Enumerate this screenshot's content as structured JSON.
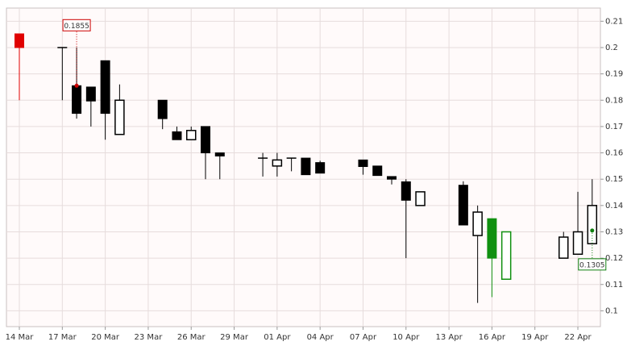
{
  "chart_data": {
    "type": "candlestick",
    "ylim": [
      0.094,
      0.215
    ],
    "yticks": [
      0.1,
      0.11,
      0.12,
      0.13,
      0.14,
      0.15,
      0.16,
      0.17,
      0.18,
      0.19,
      0.2,
      0.21
    ],
    "xticks": [
      "14 Mar",
      "17 Mar",
      "20 Mar",
      "23 Mar",
      "26 Mar",
      "29 Mar",
      "01 Apr",
      "04 Apr",
      "07 Apr",
      "10 Apr",
      "13 Apr",
      "16 Apr",
      "19 Apr",
      "22 Apr"
    ],
    "grid": true,
    "candles": [
      {
        "date": "14 Mar",
        "open": 0.2052,
        "high": 0.2052,
        "low": 0.18,
        "close": 0.2,
        "color": "#e00000"
      },
      {
        "date": "17 Mar",
        "open": 0.2,
        "high": 0.2,
        "low": 0.18,
        "close": 0.2,
        "color": "#000000"
      },
      {
        "date": "18 Mar",
        "open": 0.1855,
        "high": 0.2,
        "low": 0.173,
        "close": 0.175,
        "color": "#000000"
      },
      {
        "date": "19 Mar",
        "open": 0.185,
        "high": 0.185,
        "low": 0.17,
        "close": 0.1797,
        "color": "#000000"
      },
      {
        "date": "20 Mar",
        "open": 0.195,
        "high": 0.195,
        "low": 0.165,
        "close": 0.175,
        "color": "#000000"
      },
      {
        "date": "21 Mar",
        "open": 0.167,
        "high": 0.186,
        "low": 0.167,
        "close": 0.18,
        "color": "#000000"
      },
      {
        "date": "24 Mar",
        "open": 0.18,
        "high": 0.18,
        "low": 0.169,
        "close": 0.173,
        "color": "#000000"
      },
      {
        "date": "25 Mar",
        "open": 0.168,
        "high": 0.17,
        "low": 0.165,
        "close": 0.165,
        "color": "#000000"
      },
      {
        "date": "26 Mar",
        "open": 0.165,
        "high": 0.17,
        "low": 0.165,
        "close": 0.1685,
        "color": "#000000"
      },
      {
        "date": "27 Mar",
        "open": 0.17,
        "high": 0.17,
        "low": 0.15,
        "close": 0.16,
        "color": "#000000"
      },
      {
        "date": "28 Mar",
        "open": 0.16,
        "high": 0.16,
        "low": 0.15,
        "close": 0.1588,
        "color": "#000000"
      },
      {
        "date": "31 Mar",
        "open": 0.158,
        "high": 0.16,
        "low": 0.151,
        "close": 0.158,
        "color": "#000000"
      },
      {
        "date": "01 Apr",
        "open": 0.155,
        "high": 0.16,
        "low": 0.151,
        "close": 0.1573,
        "color": "#000000"
      },
      {
        "date": "02 Apr",
        "open": 0.158,
        "high": 0.158,
        "low": 0.153,
        "close": 0.158,
        "color": "#000000"
      },
      {
        "date": "03 Apr",
        "open": 0.158,
        "high": 0.158,
        "low": 0.1517,
        "close": 0.1517,
        "color": "#000000"
      },
      {
        "date": "04 Apr",
        "open": 0.1563,
        "high": 0.157,
        "low": 0.1523,
        "close": 0.1523,
        "color": "#000000"
      },
      {
        "date": "07 Apr",
        "open": 0.1573,
        "high": 0.1573,
        "low": 0.1517,
        "close": 0.1548,
        "color": "#000000"
      },
      {
        "date": "08 Apr",
        "open": 0.155,
        "high": 0.155,
        "low": 0.1514,
        "close": 0.1514,
        "color": "#000000"
      },
      {
        "date": "09 Apr",
        "open": 0.151,
        "high": 0.151,
        "low": 0.148,
        "close": 0.15,
        "color": "#000000"
      },
      {
        "date": "10 Apr",
        "open": 0.149,
        "high": 0.15,
        "low": 0.12,
        "close": 0.142,
        "color": "#000000"
      },
      {
        "date": "11 Apr",
        "open": 0.14,
        "high": 0.1452,
        "low": 0.14,
        "close": 0.1452,
        "color": "#000000"
      },
      {
        "date": "14 Apr",
        "open": 0.1477,
        "high": 0.1492,
        "low": 0.1326,
        "close": 0.1326,
        "color": "#000000"
      },
      {
        "date": "15 Apr",
        "open": 0.1286,
        "high": 0.14,
        "low": 0.103,
        "close": 0.1375,
        "color": "#000000"
      },
      {
        "date": "16 Apr",
        "open": 0.135,
        "high": 0.135,
        "low": 0.1052,
        "close": 0.12,
        "color": "#109010"
      },
      {
        "date": "17 Apr",
        "open": 0.112,
        "high": 0.13,
        "low": 0.112,
        "close": 0.13,
        "color": "#109010"
      },
      {
        "date": "21 Apr",
        "open": 0.12,
        "high": 0.13,
        "low": 0.12,
        "close": 0.128,
        "color": "#000000"
      },
      {
        "date": "22 Apr",
        "open": 0.1215,
        "high": 0.1452,
        "low": 0.1215,
        "close": 0.13,
        "color": "#000000"
      },
      {
        "date": "23 Apr",
        "open": 0.1255,
        "high": 0.15,
        "low": 0.1255,
        "close": 0.14,
        "color": "#000000"
      }
    ],
    "annotations": [
      {
        "date": "18 Mar",
        "value": 0.1855,
        "color": "#cc0000"
      },
      {
        "date": "23 Apr",
        "value": 0.1305,
        "color": "#108010"
      }
    ]
  }
}
